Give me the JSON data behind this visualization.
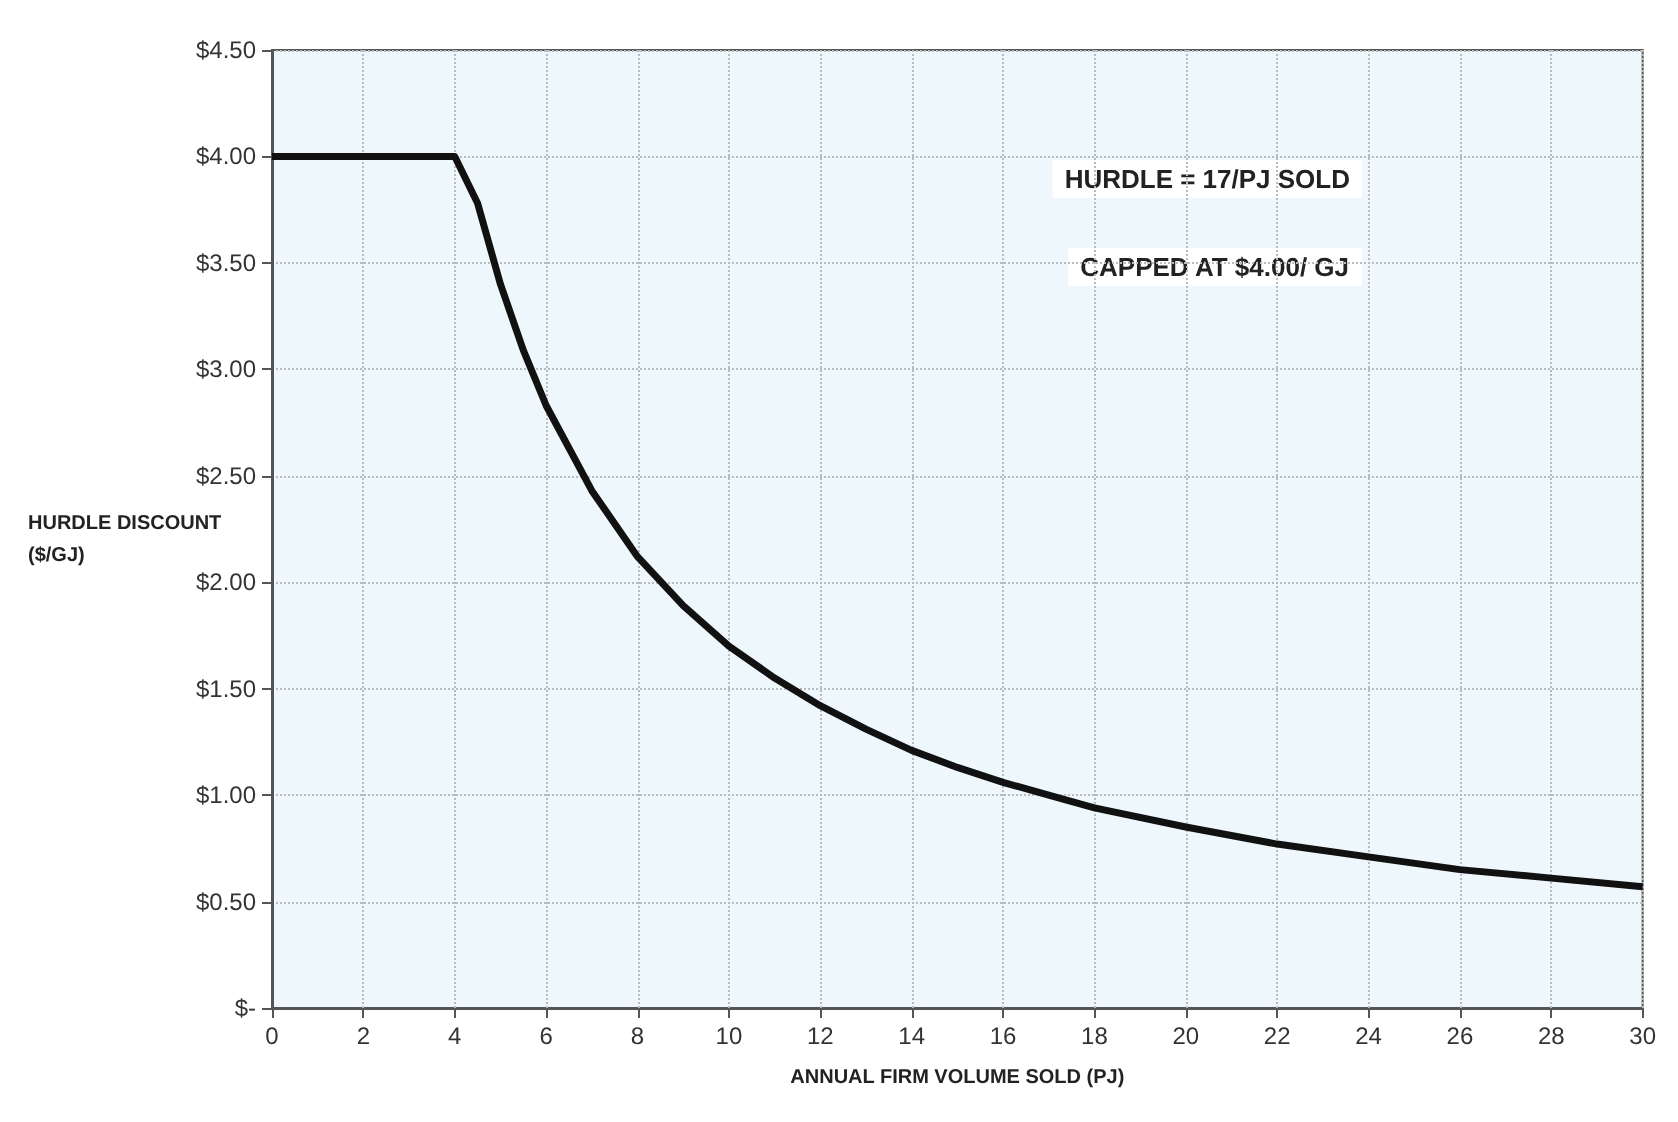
{
  "chart_data": {
    "type": "line",
    "xlabel": "ANNUAL FIRM VOLUME SOLD (PJ)",
    "ylabel": "HURDLE DISCOUNT\n($/GJ)",
    "annotations": [
      "HURDLE = 17/PJ SOLD",
      "CAPPED AT $4.00/ GJ"
    ],
    "x": [
      0,
      1,
      2,
      3,
      4,
      4.5,
      5,
      5.5,
      6,
      7,
      8,
      9,
      10,
      11,
      12,
      13,
      14,
      15,
      16,
      17,
      18,
      20,
      22,
      24,
      26,
      28,
      30
    ],
    "series": [
      {
        "color": "#111111",
        "values": [
          4.0,
          4.0,
          4.0,
          4.0,
          4.0,
          3.78,
          3.4,
          3.09,
          2.83,
          2.43,
          2.12,
          1.89,
          1.7,
          1.55,
          1.42,
          1.31,
          1.21,
          1.13,
          1.06,
          1.0,
          0.94,
          0.85,
          0.77,
          0.71,
          0.65,
          0.61,
          0.57
        ]
      }
    ],
    "xlim": [
      0,
      30
    ],
    "xticks": [
      0,
      2,
      4,
      6,
      8,
      10,
      12,
      14,
      16,
      18,
      20,
      22,
      24,
      26,
      28,
      30
    ],
    "ylim": [
      0,
      4.5
    ],
    "yticks": [
      {
        "value": 0,
        "label": "$-"
      },
      {
        "value": 0.5,
        "label": "$0.50"
      },
      {
        "value": 1,
        "label": "$1.00"
      },
      {
        "value": 1.5,
        "label": "$1.50"
      },
      {
        "value": 2,
        "label": "$2.00"
      },
      {
        "value": 2.5,
        "label": "$2.50"
      },
      {
        "value": 3,
        "label": "$3.00"
      },
      {
        "value": 3.5,
        "label": "$3.50"
      },
      {
        "value": 4,
        "label": "$4.00"
      },
      {
        "value": 4.5,
        "label": "$4.50"
      }
    ],
    "grid": true,
    "marker": "none",
    "line_style": "solid"
  }
}
